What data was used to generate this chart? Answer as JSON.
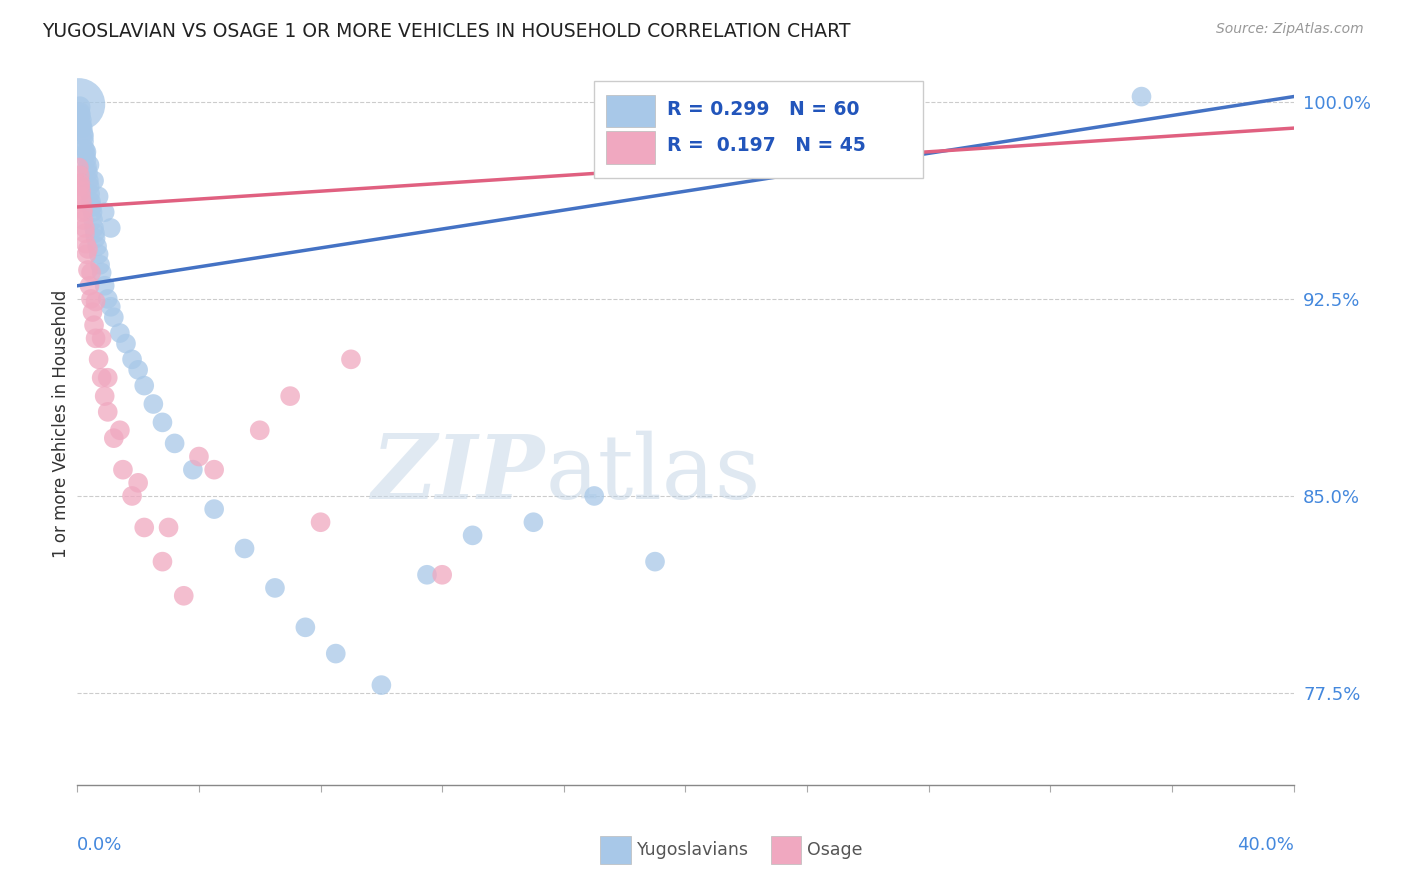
{
  "title": "YUGOSLAVIAN VS OSAGE 1 OR MORE VEHICLES IN HOUSEHOLD CORRELATION CHART",
  "source": "Source: ZipAtlas.com",
  "ylabel": "1 or more Vehicles in Household",
  "ytick_values": [
    77.5,
    85.0,
    92.5,
    100.0
  ],
  "blue_color": "#a8c8e8",
  "pink_color": "#f0a8c0",
  "blue_line_color": "#4472c4",
  "pink_line_color": "#e06080",
  "R_blue": 0.299,
  "N_blue": 60,
  "R_pink": 0.197,
  "N_pink": 45,
  "xmin": 0.0,
  "xmax": 40.0,
  "ymin": 74.0,
  "ymax": 101.5,
  "watermark_zip": "ZIP",
  "watermark_atlas": "atlas",
  "blue_scatter_x": [
    0.08,
    0.12,
    0.15,
    0.18,
    0.2,
    0.22,
    0.25,
    0.28,
    0.3,
    0.32,
    0.35,
    0.38,
    0.4,
    0.42,
    0.45,
    0.48,
    0.5,
    0.52,
    0.55,
    0.58,
    0.6,
    0.65,
    0.7,
    0.75,
    0.8,
    0.9,
    1.0,
    1.1,
    1.2,
    1.4,
    1.6,
    1.8,
    2.0,
    2.2,
    2.5,
    2.8,
    3.2,
    3.8,
    4.5,
    5.5,
    6.5,
    7.5,
    8.5,
    10.0,
    11.5,
    13.0,
    15.0,
    17.0,
    19.0,
    0.05,
    0.1,
    0.15,
    0.22,
    0.3,
    0.4,
    0.55,
    0.7,
    0.9,
    1.1,
    35.0
  ],
  "blue_scatter_y": [
    99.8,
    99.5,
    99.3,
    99.0,
    98.8,
    98.5,
    98.2,
    98.0,
    97.8,
    97.5,
    97.3,
    97.0,
    96.8,
    96.5,
    96.2,
    96.0,
    95.8,
    95.5,
    95.2,
    95.0,
    94.8,
    94.5,
    94.2,
    93.8,
    93.5,
    93.0,
    92.5,
    92.2,
    91.8,
    91.2,
    90.8,
    90.2,
    89.8,
    89.2,
    88.5,
    87.8,
    87.0,
    86.0,
    84.5,
    83.0,
    81.5,
    80.0,
    79.0,
    77.8,
    82.0,
    83.5,
    84.0,
    85.0,
    82.5,
    99.9,
    99.6,
    99.1,
    98.7,
    98.1,
    97.6,
    97.0,
    96.4,
    95.8,
    95.2,
    100.2
  ],
  "pink_scatter_x": [
    0.05,
    0.08,
    0.1,
    0.12,
    0.15,
    0.18,
    0.2,
    0.25,
    0.28,
    0.3,
    0.35,
    0.4,
    0.45,
    0.5,
    0.55,
    0.6,
    0.7,
    0.8,
    0.9,
    1.0,
    1.2,
    1.5,
    1.8,
    2.2,
    2.8,
    3.5,
    4.5,
    6.0,
    7.0,
    9.0,
    0.08,
    0.12,
    0.18,
    0.25,
    0.35,
    0.45,
    0.6,
    0.8,
    1.0,
    1.4,
    2.0,
    3.0,
    4.0,
    8.0,
    12.0
  ],
  "pink_scatter_y": [
    97.5,
    97.2,
    96.9,
    96.6,
    96.2,
    95.8,
    95.5,
    95.0,
    94.6,
    94.2,
    93.6,
    93.0,
    92.5,
    92.0,
    91.5,
    91.0,
    90.2,
    89.5,
    88.8,
    88.2,
    87.2,
    86.0,
    85.0,
    83.8,
    82.5,
    81.2,
    86.0,
    87.5,
    88.8,
    90.2,
    96.8,
    96.4,
    95.9,
    95.2,
    94.4,
    93.5,
    92.4,
    91.0,
    89.5,
    87.5,
    85.5,
    83.8,
    86.5,
    84.0,
    82.0
  ],
  "blue_scatter_sizes": [
    30,
    25,
    25,
    25,
    25,
    25,
    25,
    25,
    25,
    25,
    25,
    25,
    25,
    25,
    25,
    25,
    25,
    25,
    25,
    25,
    25,
    25,
    25,
    25,
    25,
    25,
    25,
    25,
    25,
    25,
    25,
    25,
    25,
    25,
    25,
    25,
    25,
    25,
    25,
    25,
    25,
    25,
    25,
    25,
    25,
    25,
    25,
    25,
    25,
    180,
    25,
    25,
    25,
    25,
    25,
    25,
    25,
    25,
    25,
    25
  ],
  "legend_text_color": "#2255bb",
  "tick_color": "#4488dd"
}
